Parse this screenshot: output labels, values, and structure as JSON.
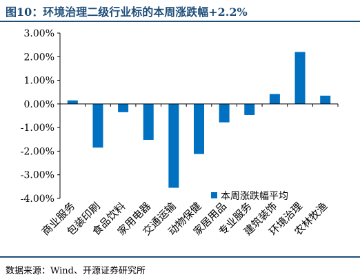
{
  "header": {
    "title": "图10：环境治理二级行业标的本周涨跌幅+2.2%"
  },
  "footer": {
    "source": "数据来源：Wind、开源证券研究所"
  },
  "colors": {
    "bar": "#0070c0",
    "accent": "#1f4e79",
    "axis": "#000000"
  },
  "chart_data": {
    "type": "bar",
    "categories": [
      "商业服务",
      "包装印刷",
      "食品饮料",
      "家用电器",
      "交通运输",
      "动物保健",
      "家居用品",
      "专业服务",
      "建筑装饰",
      "环境治理",
      "农林牧渔"
    ],
    "series": [
      {
        "name": "本周涨跌幅平均",
        "values": [
          0.15,
          -1.85,
          -0.35,
          -1.52,
          -3.55,
          -2.12,
          -0.78,
          -0.47,
          0.42,
          2.2,
          0.35
        ]
      }
    ],
    "ylim": [
      -4,
      3
    ],
    "yticks": [
      "3.00%",
      "2.00%",
      "1.00%",
      "0.00%",
      "-1.00%",
      "-2.00%",
      "-3.00%",
      "-4.00%"
    ],
    "ytick_values": [
      3,
      2,
      1,
      0,
      -1,
      -2,
      -3,
      -4
    ],
    "legend_position": "bottom-right",
    "grid": false
  }
}
